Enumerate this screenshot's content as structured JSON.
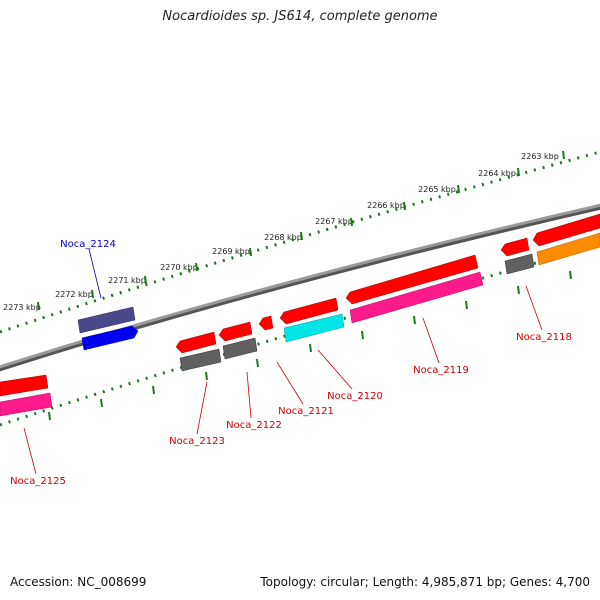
{
  "title": "Nocardioides sp. JS614, complete genome",
  "footer": {
    "accession": "Accession: NC_008699",
    "summary": "Topology: circular; Length: 4,985,871 bp; Genes: 4,700"
  },
  "colors": {
    "backbone": "#808080",
    "tick": "#1a7a1a",
    "red": "#ff0000",
    "magenta": "#ff1a8c",
    "gray": "#606060",
    "cyan": "#00e5e5",
    "orange": "#ff8c00",
    "blue": "#0000ee",
    "slate": "#4a4a8a",
    "label_red": "#cc0000",
    "label_blue": "#0000cc"
  },
  "ticks": [
    {
      "label": "2263 kbp"
    },
    {
      "label": "2264 kbp"
    },
    {
      "label": "2265 kbp"
    },
    {
      "label": "2266 kbp"
    },
    {
      "label": "2267 kbp"
    },
    {
      "label": "2268 kbp"
    },
    {
      "label": "2269 kbp"
    },
    {
      "label": "2270 kbp"
    },
    {
      "label": "2271 kbp"
    },
    {
      "label": "2272 kbp"
    },
    {
      "label": "2273 kbp"
    }
  ],
  "genes": [
    {
      "label": "Noca_2118",
      "color": "label_red"
    },
    {
      "label": "Noca_2119",
      "color": "label_red"
    },
    {
      "label": "Noca_2120",
      "color": "label_red"
    },
    {
      "label": "Noca_2121",
      "color": "label_red"
    },
    {
      "label": "Noca_2122",
      "color": "label_red"
    },
    {
      "label": "Noca_2123",
      "color": "label_red"
    },
    {
      "label": "Noca_2124",
      "color": "label_blue"
    },
    {
      "label": "Noca_2125",
      "color": "label_red"
    }
  ]
}
